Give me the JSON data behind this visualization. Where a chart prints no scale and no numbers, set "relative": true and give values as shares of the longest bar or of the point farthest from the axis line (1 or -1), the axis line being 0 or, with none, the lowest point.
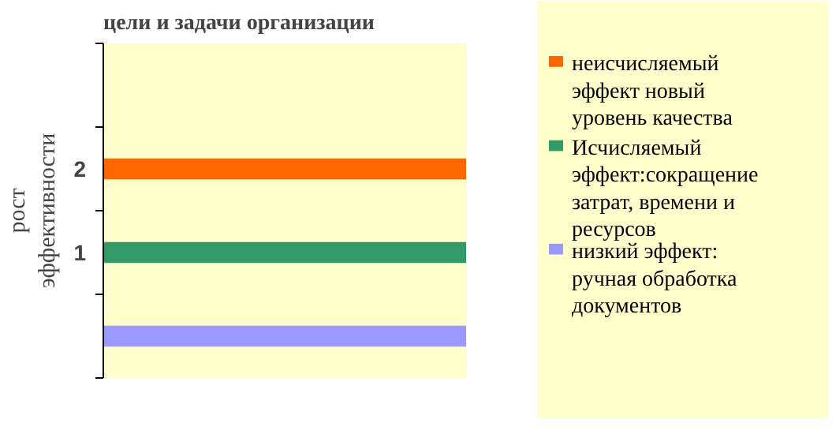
{
  "chart_data": {
    "type": "bar",
    "orientation": "horizontal",
    "relative": true,
    "title": "цели и задачи организации",
    "ylabel": "рост эффективности",
    "categories": [
      null,
      "2",
      "1",
      null
    ],
    "legend": "right",
    "series": [
      {
        "name": "неисчисляемый эффект новый уровень качества",
        "color": "#ff6600",
        "values": [
          null,
          1,
          null,
          null
        ]
      },
      {
        "name": "Исчисляемый эффект:сокращение затрат, времени и ресурсов",
        "color": "#339966",
        "values": [
          null,
          null,
          1,
          null
        ]
      },
      {
        "name": "низкий эффект: ручная обработка документов",
        "color": "#9999ff",
        "values": [
          null,
          null,
          null,
          1
        ]
      }
    ]
  }
}
